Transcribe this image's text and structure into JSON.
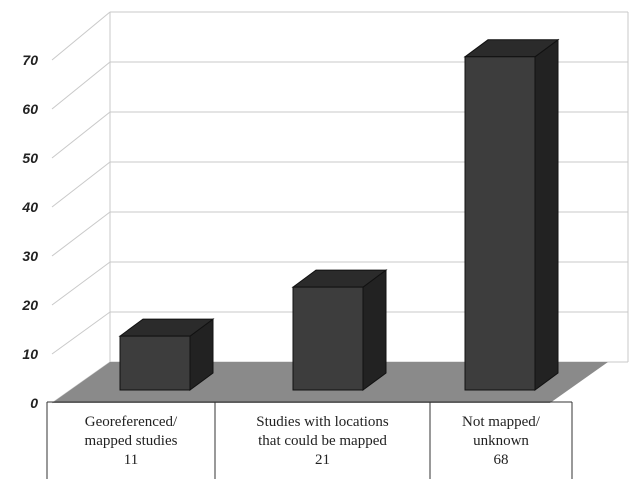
{
  "chart_data": {
    "type": "bar",
    "categories": [
      [
        "Georeferenced/",
        "mapped studies",
        "11"
      ],
      [
        "Studies with locations",
        "that could be mapped",
        "21"
      ],
      [
        "Not mapped/",
        "unknown",
        "68"
      ]
    ],
    "values": [
      11,
      21,
      68
    ],
    "yticks": [
      "0",
      "10",
      "20",
      "30",
      "40",
      "50",
      "60",
      "70"
    ],
    "ylim": [
      0,
      70
    ],
    "grid": true,
    "title": "",
    "xlabel": "",
    "ylabel": ""
  },
  "colors": {
    "bar_front": "#3d3d3d",
    "bar_top": "#2b2b2b",
    "bar_side": "#222222",
    "floor": "#8a8a8a",
    "grid": "#c9c9c9"
  }
}
